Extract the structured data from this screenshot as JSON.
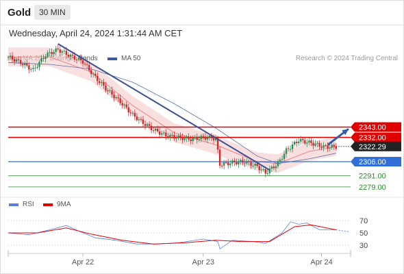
{
  "header": {
    "symbol": "Gold",
    "timeframe": "30 MIN"
  },
  "datetime": "Wednesday, April 24, 2024 1:31:44 AM CET",
  "legend": {
    "ma20_label": "MA 20 + Bollinger Bands",
    "ma50_label": "MA 50",
    "ma20_color": "#f08080",
    "ma50_color": "#3d5a99",
    "rsi_label": "RSI",
    "ma9_label": "9MA",
    "rsi_color": "#5b7fd6",
    "ma9_color": "#e00000"
  },
  "copyright": "Research © 2024 Trading Central",
  "chart_data": [
    {
      "type": "candlestick",
      "x_labels": [
        "Apr 22",
        "Apr 23",
        "Apr 24"
      ],
      "levels": [
        {
          "value": 2343.0,
          "label": "2343.00",
          "kind": "resistance",
          "color": "#e00000"
        },
        {
          "value": 2332.0,
          "label": "2332.00",
          "kind": "resistance",
          "color": "#e00000"
        },
        {
          "value": 2322.29,
          "label": "2322.29",
          "kind": "last-price",
          "color": "#222222"
        },
        {
          "value": 2306.0,
          "label": "2306.00",
          "kind": "pivot",
          "color": "#2f6fd6"
        },
        {
          "value": 2291.0,
          "label": "2291.00",
          "kind": "support",
          "color": "#2a8a2a"
        },
        {
          "value": 2279.0,
          "label": "2279.00",
          "kind": "support",
          "color": "#2a8a2a"
        }
      ],
      "price_points": [
        {
          "t": 0,
          "p": 2418
        },
        {
          "t": 6,
          "p": 2412
        },
        {
          "t": 12,
          "p": 2404
        },
        {
          "t": 18,
          "p": 2420
        },
        {
          "t": 24,
          "p": 2426
        },
        {
          "t": 30,
          "p": 2419
        },
        {
          "t": 36,
          "p": 2413
        },
        {
          "t": 42,
          "p": 2396
        },
        {
          "t": 48,
          "p": 2382
        },
        {
          "t": 54,
          "p": 2370
        },
        {
          "t": 60,
          "p": 2356
        },
        {
          "t": 64,
          "p": 2349
        },
        {
          "t": 70,
          "p": 2340
        },
        {
          "t": 76,
          "p": 2334
        },
        {
          "t": 82,
          "p": 2332
        },
        {
          "t": 88,
          "p": 2330
        },
        {
          "t": 94,
          "p": 2332
        },
        {
          "t": 100,
          "p": 2331
        },
        {
          "t": 102,
          "p": 2303
        },
        {
          "t": 108,
          "p": 2305
        },
        {
          "t": 114,
          "p": 2306
        },
        {
          "t": 120,
          "p": 2301
        },
        {
          "t": 124,
          "p": 2294
        },
        {
          "t": 130,
          "p": 2304
        },
        {
          "t": 134,
          "p": 2318
        },
        {
          "t": 140,
          "p": 2329
        },
        {
          "t": 146,
          "p": 2326
        },
        {
          "t": 152,
          "p": 2322
        },
        {
          "t": 158,
          "p": 2322
        }
      ],
      "trend_line": {
        "from": {
          "t": 24,
          "p": 2432
        },
        "to": {
          "t": 126,
          "p": 2297
        }
      },
      "projection_arrow": {
        "from": {
          "t": 154,
          "p": 2324
        },
        "to": {
          "t": 164,
          "p": 2341
        }
      },
      "ma50_points": [
        {
          "t": 0,
          "p": 2412
        },
        {
          "t": 20,
          "p": 2410
        },
        {
          "t": 40,
          "p": 2405
        },
        {
          "t": 60,
          "p": 2391
        },
        {
          "t": 80,
          "p": 2368
        },
        {
          "t": 100,
          "p": 2342
        },
        {
          "t": 120,
          "p": 2312
        },
        {
          "t": 130,
          "p": 2304
        },
        {
          "t": 145,
          "p": 2309
        },
        {
          "t": 158,
          "p": 2315
        }
      ],
      "ma20_points": [
        {
          "t": 0,
          "p": 2418
        },
        {
          "t": 20,
          "p": 2418
        },
        {
          "t": 40,
          "p": 2402
        },
        {
          "t": 60,
          "p": 2366
        },
        {
          "t": 80,
          "p": 2337
        },
        {
          "t": 100,
          "p": 2324
        },
        {
          "t": 120,
          "p": 2306
        },
        {
          "t": 130,
          "p": 2304
        },
        {
          "t": 145,
          "p": 2317
        },
        {
          "t": 158,
          "p": 2322
        }
      ],
      "bollinger_half_width": 10
    },
    {
      "type": "line",
      "name": "RSI panel",
      "y_ticks": [
        70,
        50,
        30
      ],
      "ylim": [
        20,
        80
      ],
      "rsi_points": [
        {
          "t": 0,
          "p": 50
        },
        {
          "t": 10,
          "p": 47
        },
        {
          "t": 20,
          "p": 55
        },
        {
          "t": 28,
          "p": 62
        },
        {
          "t": 34,
          "p": 53
        },
        {
          "t": 42,
          "p": 42
        },
        {
          "t": 52,
          "p": 38
        },
        {
          "t": 62,
          "p": 32
        },
        {
          "t": 72,
          "p": 32
        },
        {
          "t": 82,
          "p": 34
        },
        {
          "t": 94,
          "p": 40
        },
        {
          "t": 101,
          "p": 36
        },
        {
          "t": 102,
          "p": 24
        },
        {
          "t": 108,
          "p": 38
        },
        {
          "t": 118,
          "p": 36
        },
        {
          "t": 124,
          "p": 33
        },
        {
          "t": 132,
          "p": 50
        },
        {
          "t": 136,
          "p": 68
        },
        {
          "t": 140,
          "p": 64
        },
        {
          "t": 144,
          "p": 66
        },
        {
          "t": 150,
          "p": 55
        },
        {
          "t": 158,
          "p": 55
        }
      ],
      "ma9_points": [
        {
          "t": 0,
          "p": 50
        },
        {
          "t": 14,
          "p": 50
        },
        {
          "t": 28,
          "p": 58
        },
        {
          "t": 40,
          "p": 48
        },
        {
          "t": 55,
          "p": 38
        },
        {
          "t": 70,
          "p": 32
        },
        {
          "t": 85,
          "p": 34
        },
        {
          "t": 100,
          "p": 38
        },
        {
          "t": 112,
          "p": 36
        },
        {
          "t": 126,
          "p": 36
        },
        {
          "t": 138,
          "p": 60
        },
        {
          "t": 146,
          "p": 63
        },
        {
          "t": 158,
          "p": 55
        }
      ],
      "projection_end": 52
    }
  ]
}
